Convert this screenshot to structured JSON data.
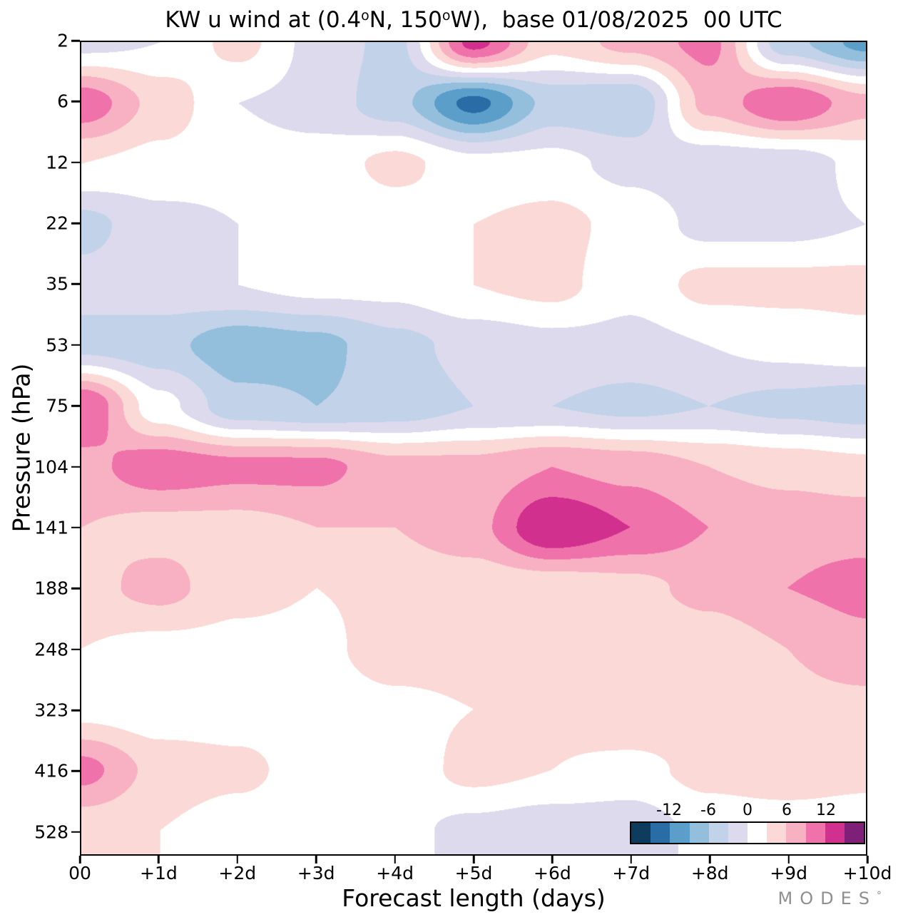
{
  "title": {
    "p1": "KW u wind at (0.4",
    "sup1": "o",
    "p2": "N, 150",
    "sup2": "o",
    "p3": "W),  base 01/08/2025  00 UTC"
  },
  "axes": {
    "y_label": "Pressure (hPa)",
    "x_label": "Forecast length (days)",
    "y_ticks": [
      "2",
      "6",
      "12",
      "22",
      "35",
      "53",
      "75",
      "104",
      "141",
      "188",
      "248",
      "323",
      "416",
      "528"
    ],
    "x_ticks": [
      "00",
      "+1d",
      "+2d",
      "+3d",
      "+4d",
      "+5d",
      "+6d",
      "+7d",
      "+8d",
      "+9d",
      "+10d"
    ]
  },
  "colorbar": {
    "labels": [
      "-12",
      "-6",
      "0",
      "6",
      "12"
    ]
  },
  "footer": {
    "brand": "MODES",
    "mark": "°"
  },
  "chart_data": {
    "type": "heatmap",
    "title": "KW u wind at (0.4°N, 150°W), base 01/08/2025 00 UTC",
    "xlabel": "Forecast length (days)",
    "ylabel": "Pressure (hPa)",
    "x_days": [
      0,
      1,
      2,
      3,
      4,
      5,
      6,
      7,
      8,
      9,
      10
    ],
    "pressure_levels_hPa": [
      2,
      6,
      12,
      22,
      35,
      53,
      75,
      104,
      141,
      188,
      248,
      323,
      416,
      528
    ],
    "y_scale": "log",
    "x_range_days": [
      0,
      10
    ],
    "values": [
      [
        -1,
        0,
        4,
        -1,
        -4,
        13,
        4,
        7,
        10,
        -5,
        -10
      ],
      [
        11,
        5,
        0,
        -1,
        -5,
        -13,
        -5,
        -6,
        7,
        12,
        7
      ],
      [
        3,
        2,
        1,
        1,
        4,
        1,
        1,
        -1,
        -2,
        -2,
        1
      ],
      [
        -4,
        -1,
        0,
        0,
        1,
        3,
        4,
        2,
        -1,
        -1,
        0
      ],
      [
        -2,
        -1,
        0,
        1,
        1,
        3,
        4,
        1,
        4,
        4,
        4
      ],
      [
        -4,
        -5,
        -8,
        -7,
        -4,
        -2,
        -1,
        -1,
        0,
        1,
        2
      ],
      [
        12,
        1,
        -5,
        -6,
        -5,
        -3,
        -3,
        -4,
        -3,
        -4,
        -5
      ],
      [
        8,
        11,
        10,
        10,
        7,
        7,
        9,
        8,
        6,
        5,
        4
      ],
      [
        6,
        5,
        5,
        6,
        6,
        8,
        15,
        12,
        9,
        8,
        8
      ],
      [
        5,
        7,
        4,
        3,
        4,
        4,
        4,
        5,
        7,
        9,
        10
      ],
      [
        3,
        2,
        2,
        2,
        5,
        5,
        4,
        3,
        4,
        6,
        8
      ],
      [
        2,
        1,
        1,
        1,
        2,
        3,
        4,
        6,
        5,
        5,
        5
      ],
      [
        10,
        5,
        4,
        1,
        1,
        4,
        3,
        2,
        4,
        5,
        4
      ],
      [
        4,
        3,
        1,
        0,
        1,
        -1,
        -2,
        -2,
        1,
        1,
        1
      ]
    ],
    "colorscale": {
      "min": -18,
      "max": 18,
      "step": 3,
      "colors": [
        "#0d3c5f",
        "#2a6da6",
        "#5b9ec9",
        "#93bfdd",
        "#c2d3e9",
        "#dedaee",
        "#ffffff",
        "#fbd9d6",
        "#f8b1c3",
        "#f072ab",
        "#d2308f",
        "#7e2078"
      ],
      "tick_labels": [
        "-12",
        "-6",
        "0",
        "6",
        "12"
      ]
    }
  }
}
